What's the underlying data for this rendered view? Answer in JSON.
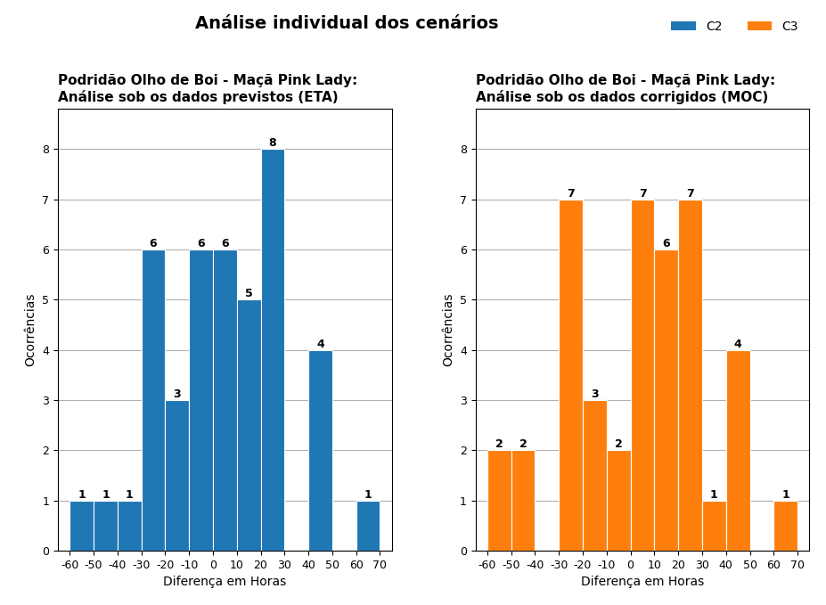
{
  "title": "Análise individual dos cenários",
  "legend": "upper right",
  "chart_data": [
    {
      "type": "histogram",
      "title": "Podridão Olho de Boi - Maçã Pink Lady:\nAnálise sob os dados previstos (ETA)",
      "x_label": "Diferença em Horas",
      "y_label": "Ocorrências",
      "bins": [
        -60,
        -50,
        -40,
        -30,
        -20,
        -10,
        0,
        10,
        20,
        30,
        40,
        50,
        60,
        70
      ],
      "series": [
        {
          "name": "C2",
          "values": [
            1,
            1,
            1,
            6,
            3,
            6,
            6,
            5,
            8,
            0,
            4,
            0,
            1
          ]
        }
      ],
      "xlim": [
        -65,
        75
      ],
      "xticks": [
        -60,
        -50,
        -40,
        -30,
        -20,
        -10,
        0,
        10,
        20,
        30,
        40,
        50,
        60,
        70
      ],
      "ylim": [
        0,
        8.8
      ],
      "yticks": [
        0,
        1,
        2,
        3,
        4,
        5,
        6,
        7,
        8
      ],
      "grid": "y",
      "data_labels": true
    },
    {
      "type": "histogram",
      "title": "Podridão Olho de Boi - Maçã Pink Lady:\nAnálise sob os dados corrigidos (MOC)",
      "x_label": "Diferença em Horas",
      "y_label": "Ocorrências",
      "bins": [
        -60,
        -50,
        -40,
        -30,
        -20,
        -10,
        0,
        10,
        20,
        30,
        40,
        50,
        60,
        70
      ],
      "series": [
        {
          "name": "C3",
          "values": [
            2,
            2,
            0,
            7,
            3,
            2,
            7,
            6,
            7,
            1,
            4,
            0,
            1
          ]
        }
      ],
      "xlim": [
        -65,
        75
      ],
      "xticks": [
        -60,
        -50,
        -40,
        -30,
        -20,
        -10,
        0,
        10,
        20,
        30,
        40,
        50,
        60,
        70
      ],
      "ylim": [
        0,
        8.8
      ],
      "yticks": [
        0,
        1,
        2,
        3,
        4,
        5,
        6,
        7,
        8
      ],
      "grid": "y",
      "data_labels": true
    }
  ]
}
